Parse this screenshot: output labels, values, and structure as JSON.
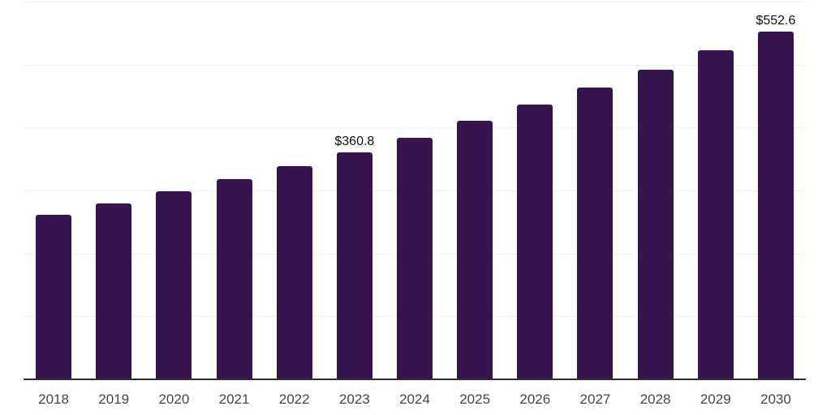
{
  "chart_data": {
    "type": "bar",
    "categories": [
      "2018",
      "2019",
      "2020",
      "2021",
      "2022",
      "2023",
      "2024",
      "2025",
      "2026",
      "2027",
      "2028",
      "2029",
      "2030"
    ],
    "values": [
      261.4,
      279.4,
      299.1,
      318.0,
      338.6,
      360.8,
      383.7,
      410.3,
      436.5,
      463.1,
      492.2,
      523.1,
      552.6
    ],
    "data_labels": [
      "",
      "",
      "",
      "",
      "",
      "$360.8",
      "",
      "",
      "",
      "",
      "",
      "",
      "$552.6"
    ],
    "title": "",
    "xlabel": "",
    "ylabel": "",
    "ylim": [
      0,
      600
    ],
    "grid_interval": 100,
    "grid": "horizontal-only",
    "y_tick_labels_visible": false,
    "legend": "none"
  },
  "colors": {
    "bar_fill": "#36154e",
    "gridline": "#efefef",
    "axis_line": "#2e2e2e",
    "tick_label": "#454545",
    "data_label": "#111111",
    "background": "#ffffff"
  }
}
